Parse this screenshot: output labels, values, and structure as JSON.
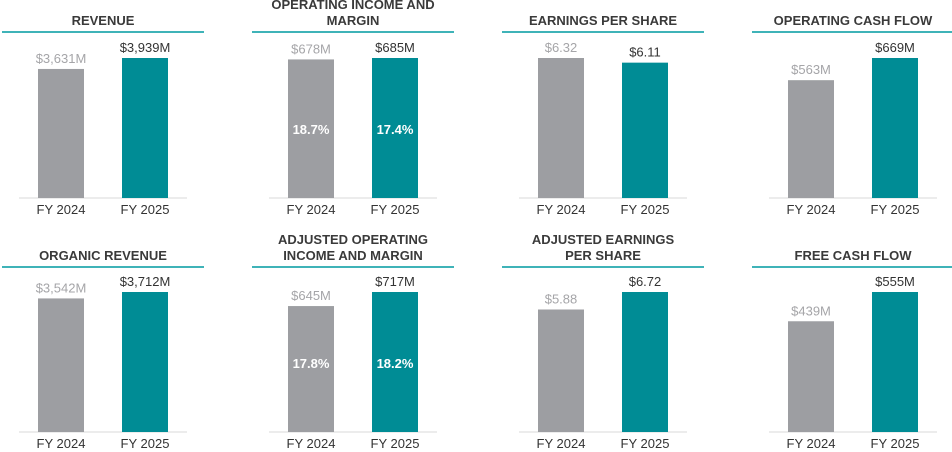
{
  "colors": {
    "prior": "#9d9ea2",
    "current": "#008c95",
    "rule": "#3fb3b8",
    "prior_label": "#a5a5a8",
    "current_label": "#333333"
  },
  "chart_data": [
    {
      "type": "bar",
      "title": [
        "REVENUE"
      ],
      "categories": [
        "FY 2024",
        "FY 2025"
      ],
      "values": [
        3631,
        3939
      ],
      "labels": [
        "$3,631M",
        "$3,939M"
      ],
      "inner_labels": []
    },
    {
      "type": "bar",
      "title": [
        "OPERATING INCOME AND",
        "MARGIN"
      ],
      "categories": [
        "FY 2024",
        "FY 2025"
      ],
      "values": [
        678,
        685
      ],
      "labels": [
        "$678M",
        "$685M"
      ],
      "inner_labels": [
        "18.7%",
        "17.4%"
      ]
    },
    {
      "type": "bar",
      "title": [
        "EARNINGS PER SHARE"
      ],
      "categories": [
        "FY 2024",
        "FY 2025"
      ],
      "values": [
        6.32,
        6.11
      ],
      "labels": [
        "$6.32",
        "$6.11"
      ],
      "inner_labels": []
    },
    {
      "type": "bar",
      "title": [
        "OPERATING CASH FLOW"
      ],
      "categories": [
        "FY 2024",
        "FY 2025"
      ],
      "values": [
        563,
        669
      ],
      "labels": [
        "$563M",
        "$669M"
      ],
      "inner_labels": []
    },
    {
      "type": "bar",
      "title": [
        "ORGANIC REVENUE"
      ],
      "categories": [
        "FY 2024",
        "FY 2025"
      ],
      "values": [
        3542,
        3712
      ],
      "labels": [
        "$3,542M",
        "$3,712M"
      ],
      "inner_labels": []
    },
    {
      "type": "bar",
      "title": [
        "ADJUSTED OPERATING",
        "INCOME AND MARGIN"
      ],
      "categories": [
        "FY 2024",
        "FY 2025"
      ],
      "values": [
        645,
        717
      ],
      "labels": [
        "$645M",
        "$717M"
      ],
      "inner_labels": [
        "17.8%",
        "18.2%"
      ]
    },
    {
      "type": "bar",
      "title": [
        "ADJUSTED EARNINGS",
        "PER SHARE"
      ],
      "categories": [
        "FY 2024",
        "FY 2025"
      ],
      "values": [
        5.88,
        6.72
      ],
      "labels": [
        "$5.88",
        "$6.72"
      ],
      "inner_labels": []
    },
    {
      "type": "bar",
      "title": [
        "FREE CASH FLOW"
      ],
      "categories": [
        "FY 2024",
        "FY 2025"
      ],
      "values": [
        439,
        555
      ],
      "labels": [
        "$439M",
        "$555M"
      ],
      "inner_labels": []
    }
  ]
}
